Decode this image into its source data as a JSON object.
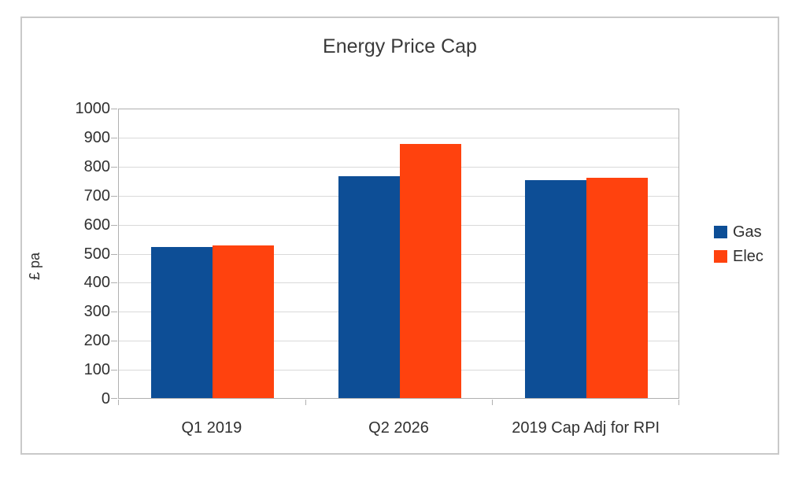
{
  "chart_data": {
    "type": "bar",
    "title": "Energy Price Cap",
    "xlabel": "",
    "ylabel": "£ pa",
    "categories": [
      "Q1 2019",
      "Q2 2026",
      "2019 Cap Adj for RPI"
    ],
    "series": [
      {
        "name": "Gas",
        "color": "#0d4e96",
        "values": [
          520,
          765,
          750
        ]
      },
      {
        "name": "Elec",
        "color": "#ff420e",
        "values": [
          527,
          875,
          758
        ]
      }
    ],
    "ylim": [
      0,
      1000
    ],
    "ytick_step": 100,
    "grid": true,
    "legend_position": "right",
    "colors": {
      "frame_border": "#c9c9c9",
      "gridline": "#d9d9d9",
      "axis": "#b0b0b0",
      "text": "#303030"
    }
  }
}
